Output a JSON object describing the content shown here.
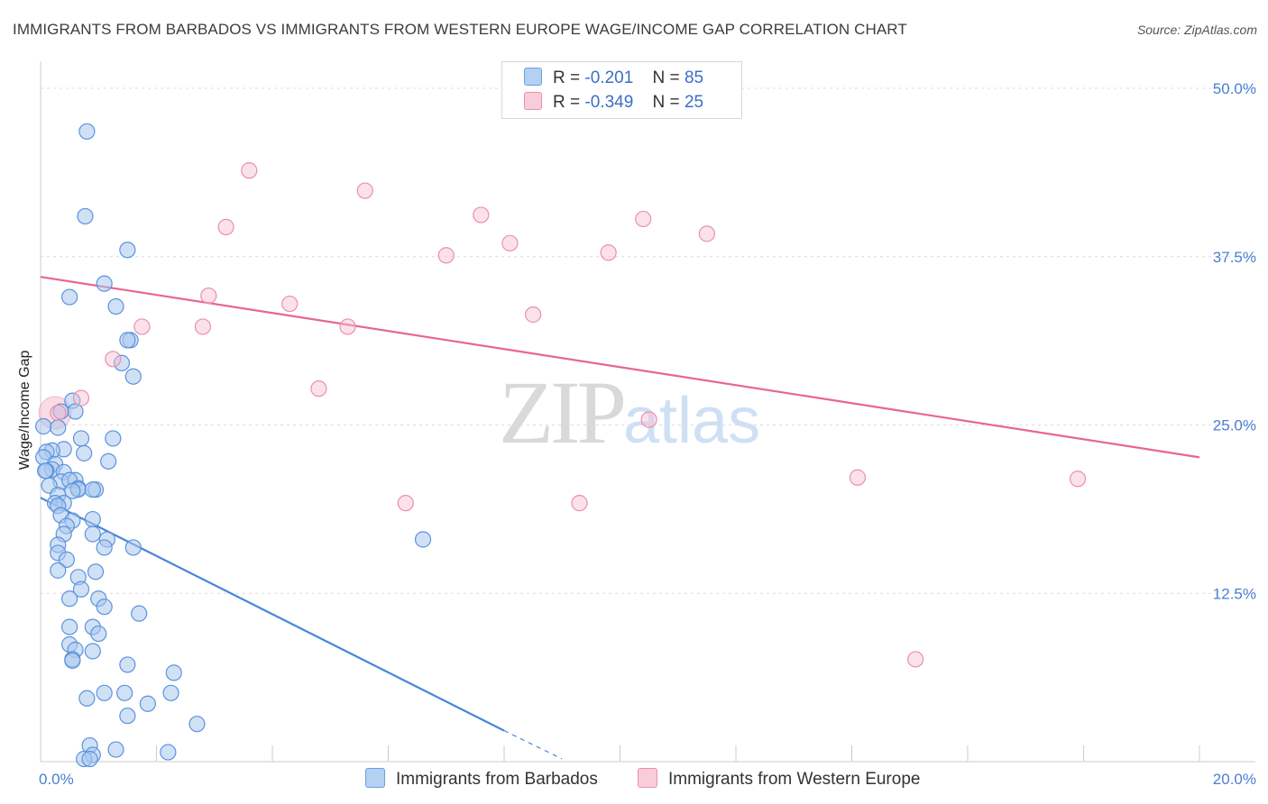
{
  "title": "IMMIGRANTS FROM BARBADOS VS IMMIGRANTS FROM WESTERN EUROPE WAGE/INCOME GAP CORRELATION CHART",
  "source": "Source: ZipAtlas.com",
  "watermark": {
    "zip": "ZIP",
    "atlas": "atlas"
  },
  "legend": {
    "rows": [
      {
        "r_label": "R =",
        "r_value": "-0.201",
        "n_label": "N =",
        "n_value": "85"
      },
      {
        "r_label": "R =",
        "r_value": "-0.349",
        "n_label": "N =",
        "n_value": "25"
      }
    ]
  },
  "bottom_legend": [
    "Immigrants from Barbados",
    "Immigrants from Western Europe"
  ],
  "chart_data": {
    "type": "scatter",
    "title": "IMMIGRANTS FROM BARBADOS VS IMMIGRANTS FROM WESTERN EUROPE WAGE/INCOME GAP CORRELATION CHART",
    "xlabel": "",
    "ylabel": "Wage/Income Gap",
    "xlim": [
      0,
      20
    ],
    "ylim": [
      0,
      52
    ],
    "x_tick_labels": [
      {
        "value": 0,
        "label": "0.0%"
      },
      {
        "value": 20,
        "label": "20.0%"
      }
    ],
    "y_tick_labels": [
      {
        "value": 12.5,
        "label": "12.5%"
      },
      {
        "value": 25,
        "label": "25.0%"
      },
      {
        "value": 37.5,
        "label": "37.5%"
      },
      {
        "value": 50,
        "label": "50.0%"
      }
    ],
    "gridlines_y": [
      12.5,
      25,
      37.5,
      50
    ],
    "x_minor_ticks": [
      0,
      2,
      4,
      6,
      8,
      10,
      12,
      14,
      16,
      18,
      20
    ],
    "colors": {
      "blue": "#4a86d8",
      "blue_fill": "#a9c8ef",
      "pink": "#e86591",
      "pink_fill": "#f6bfd0",
      "axis_text": "#4a7fd0"
    },
    "series": [
      {
        "name": "Immigrants from Barbados",
        "color": "#4a86d8",
        "points": [
          [
            0.8,
            46.8
          ],
          [
            0.77,
            40.5
          ],
          [
            1.5,
            38.0
          ],
          [
            1.1,
            35.5
          ],
          [
            0.5,
            34.5
          ],
          [
            1.3,
            33.8
          ],
          [
            1.55,
            31.3
          ],
          [
            1.5,
            31.3
          ],
          [
            1.4,
            29.6
          ],
          [
            1.6,
            28.6
          ],
          [
            0.55,
            26.8
          ],
          [
            0.6,
            26.0
          ],
          [
            0.35,
            26.0
          ],
          [
            0.05,
            24.9
          ],
          [
            0.3,
            24.8
          ],
          [
            0.7,
            24.0
          ],
          [
            1.25,
            24.0
          ],
          [
            0.4,
            23.2
          ],
          [
            0.2,
            23.1
          ],
          [
            0.1,
            23.0
          ],
          [
            0.75,
            22.9
          ],
          [
            0.05,
            22.6
          ],
          [
            1.17,
            22.3
          ],
          [
            0.25,
            22.1
          ],
          [
            0.2,
            21.7
          ],
          [
            0.4,
            21.5
          ],
          [
            0.1,
            21.6
          ],
          [
            0.08,
            21.6
          ],
          [
            0.6,
            20.9
          ],
          [
            0.35,
            20.8
          ],
          [
            0.5,
            20.9
          ],
          [
            0.65,
            20.3
          ],
          [
            0.15,
            20.5
          ],
          [
            0.95,
            20.2
          ],
          [
            0.65,
            20.2
          ],
          [
            0.9,
            20.2
          ],
          [
            0.55,
            20.1
          ],
          [
            0.3,
            19.8
          ],
          [
            0.4,
            19.2
          ],
          [
            0.25,
            19.2
          ],
          [
            0.3,
            19.0
          ],
          [
            0.35,
            18.3
          ],
          [
            0.9,
            18.0
          ],
          [
            0.55,
            17.9
          ],
          [
            0.45,
            17.5
          ],
          [
            0.9,
            16.9
          ],
          [
            0.4,
            16.9
          ],
          [
            1.15,
            16.5
          ],
          [
            0.3,
            16.1
          ],
          [
            1.6,
            15.9
          ],
          [
            1.1,
            15.9
          ],
          [
            6.6,
            16.5
          ],
          [
            0.3,
            15.5
          ],
          [
            0.45,
            15.0
          ],
          [
            0.3,
            14.2
          ],
          [
            0.95,
            14.1
          ],
          [
            0.65,
            13.7
          ],
          [
            0.7,
            12.8
          ],
          [
            0.5,
            12.1
          ],
          [
            1.0,
            12.1
          ],
          [
            1.1,
            11.5
          ],
          [
            1.7,
            11.0
          ],
          [
            0.5,
            10.0
          ],
          [
            0.9,
            10.0
          ],
          [
            1.0,
            9.5
          ],
          [
            0.5,
            8.7
          ],
          [
            0.6,
            8.3
          ],
          [
            0.9,
            8.2
          ],
          [
            0.55,
            7.6
          ],
          [
            0.55,
            7.5
          ],
          [
            1.5,
            7.2
          ],
          [
            2.3,
            6.6
          ],
          [
            2.25,
            5.1
          ],
          [
            1.45,
            5.1
          ],
          [
            1.1,
            5.1
          ],
          [
            0.8,
            4.7
          ],
          [
            1.85,
            4.3
          ],
          [
            1.5,
            3.4
          ],
          [
            2.7,
            2.8
          ],
          [
            0.85,
            1.2
          ],
          [
            1.3,
            0.9
          ],
          [
            2.2,
            0.7
          ],
          [
            0.9,
            0.5
          ],
          [
            0.75,
            0.2
          ],
          [
            0.85,
            0.2
          ]
        ],
        "trend": {
          "x": [
            0,
            8.0
          ],
          "y": [
            19.6,
            2.3
          ],
          "dashed_to": [
            9.0,
            0.2
          ]
        }
      },
      {
        "name": "Immigrants from Western Europe",
        "color": "#e86591",
        "points": [
          [
            3.6,
            43.9
          ],
          [
            5.6,
            42.4
          ],
          [
            3.2,
            39.7
          ],
          [
            7.6,
            40.6
          ],
          [
            10.4,
            40.3
          ],
          [
            11.5,
            39.2
          ],
          [
            8.1,
            38.5
          ],
          [
            7.0,
            37.6
          ],
          [
            9.8,
            37.8
          ],
          [
            2.9,
            34.6
          ],
          [
            4.3,
            34.0
          ],
          [
            8.5,
            33.2
          ],
          [
            1.75,
            32.3
          ],
          [
            2.8,
            32.3
          ],
          [
            5.3,
            32.3
          ],
          [
            1.25,
            29.9
          ],
          [
            4.8,
            27.7
          ],
          [
            0.7,
            27.0
          ],
          [
            0.3,
            25.9
          ],
          [
            10.5,
            25.4
          ],
          [
            14.1,
            21.1
          ],
          [
            17.9,
            21.0
          ],
          [
            6.3,
            19.2
          ],
          [
            9.3,
            19.2
          ],
          [
            15.1,
            7.6
          ]
        ],
        "trend": {
          "x": [
            0,
            20
          ],
          "y": [
            36.0,
            22.6
          ]
        }
      }
    ]
  }
}
